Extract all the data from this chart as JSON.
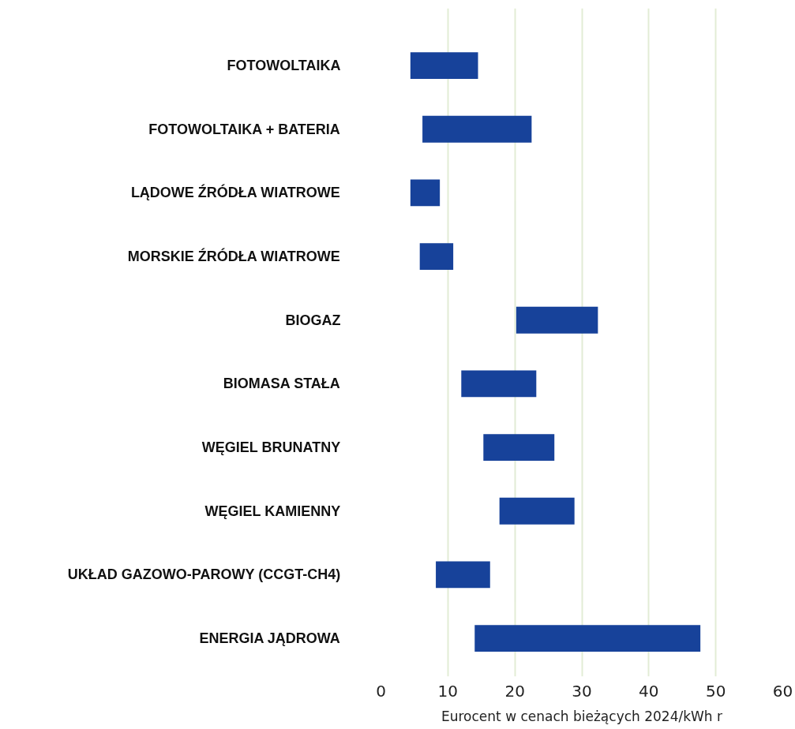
{
  "chart_data": {
    "type": "bar",
    "orientation": "horizontal",
    "categories": [
      "FOTOWOLTAIKA",
      "FOTOWOLTAIKA + BATERIA",
      "LĄDOWE ŹRÓDŁA WIATROWE",
      "MORSKIE ŹRÓDŁA WIATROWE",
      "BIOGAZ",
      "BIOMASA STAŁA",
      "WĘGIEL BRUNATNY",
      "WĘGIEL KAMIENNY",
      "UKŁAD GAZOWO-PAROWY (CCGT-CH4)",
      "ENERGIA JĄDROWA"
    ],
    "base": [
      4.4,
      6.2,
      4.4,
      5.8,
      20.2,
      12.0,
      15.3,
      17.7,
      8.2,
      14.0
    ],
    "values": [
      10.1,
      16.3,
      4.4,
      5.0,
      12.2,
      11.2,
      10.6,
      11.2,
      8.1,
      33.7
    ],
    "color": "#17429a",
    "xlabel": "Eurocent w cenach bieżących 2024/kWh r",
    "xlim": [
      0,
      60
    ],
    "xticks": [
      0,
      10,
      20,
      30,
      40,
      50,
      60
    ],
    "grid": "x"
  }
}
